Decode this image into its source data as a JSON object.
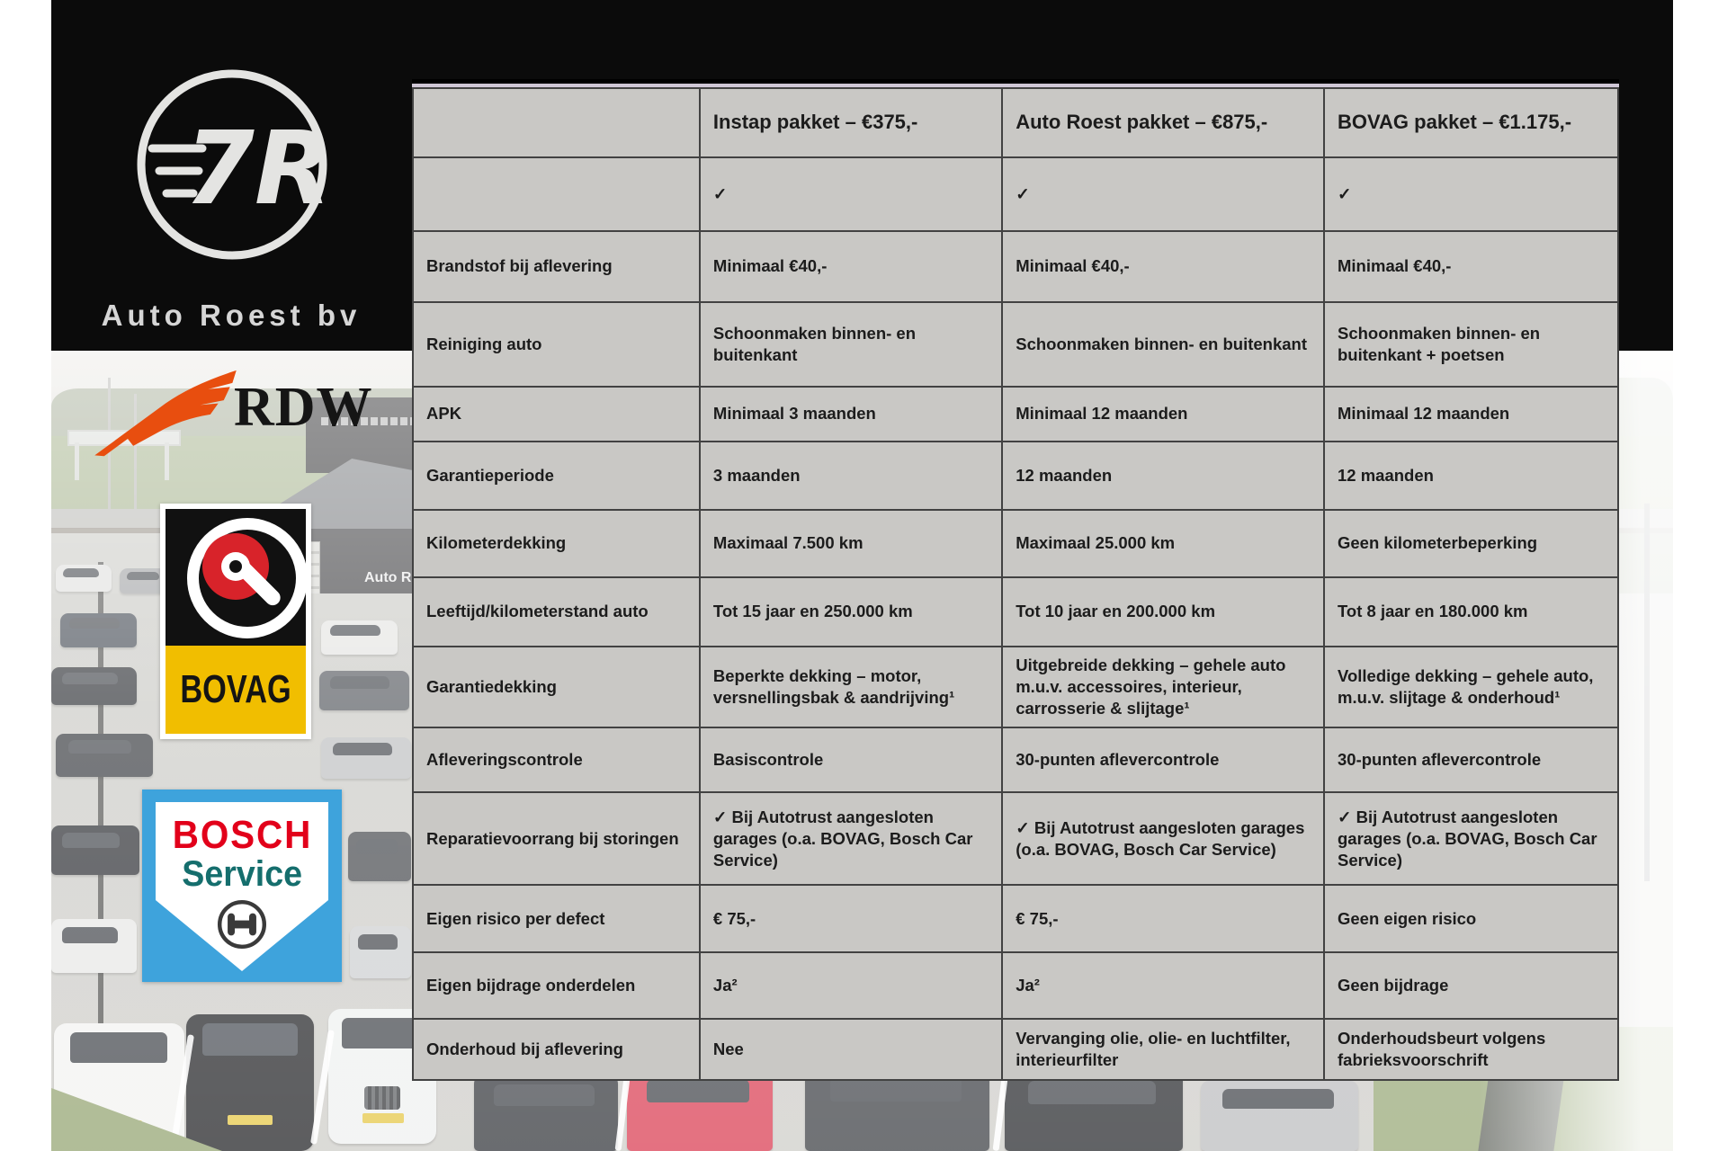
{
  "branding": {
    "company": "Auto Roest bv",
    "monogram": "7R",
    "building_sign": "Auto Ro",
    "rdw_label": "RDW",
    "bovag_label": "BOVAG",
    "bosch_line1": "BOSCH",
    "bosch_line2": "Service"
  },
  "colors": {
    "rdw-orange": "#E84E0F",
    "bovag-red": "#D8232A",
    "bovag-yellow": "#F1BE00",
    "bosch-blue": "#3EA3DC",
    "bosch-red": "#E2001A",
    "bosch-teal": "#156E6D",
    "table-bg": "#c9c8c5",
    "table-grid": "#424242"
  },
  "table": {
    "columns": [
      "",
      "Instap pakket – €375,-",
      "Auto Roest pakket – €875,-",
      "BOVAG pakket – €1.175,-"
    ],
    "rows": [
      {
        "label": "",
        "cells": [
          "✓",
          "✓",
          "✓"
        ]
      },
      {
        "label": "Brandstof bij aflevering",
        "cells": [
          "Minimaal €40,-",
          "Minimaal €40,-",
          "Minimaal €40,-"
        ]
      },
      {
        "label": "Reiniging auto",
        "cells": [
          "Schoonmaken binnen- en buitenkant",
          "Schoonmaken binnen- en buitenkant",
          "Schoonmaken binnen- en buitenkant + poetsen"
        ]
      },
      {
        "label": "APK",
        "cells": [
          "Minimaal 3 maanden",
          "Minimaal 12 maanden",
          "Minimaal 12 maanden"
        ]
      },
      {
        "label": "Garantieperiode",
        "cells": [
          "3 maanden",
          "12 maanden",
          "12 maanden"
        ]
      },
      {
        "label": "Kilometerdekking",
        "cells": [
          "Maximaal 7.500 km",
          "Maximaal 25.000 km",
          "Geen kilometerbeperking"
        ]
      },
      {
        "label": "Leeftijd/kilometerstand auto",
        "cells": [
          "Tot 15 jaar en 250.000 km",
          "Tot 10 jaar en 200.000 km",
          "Tot 8 jaar en 180.000 km"
        ]
      },
      {
        "label": "Garantiedekking",
        "cells": [
          "Beperkte dekking – motor, versnellingsbak & aandrijving¹",
          "Uitgebreide dekking – gehele auto m.u.v. accessoires, interieur, carrosserie & slijtage¹",
          "Volledige dekking – gehele auto, m.u.v. slijtage & onderhoud¹"
        ]
      },
      {
        "label": "Afleveringscontrole",
        "cells": [
          "Basiscontrole",
          "30-punten aflevercontrole",
          "30-punten aflevercontrole"
        ]
      },
      {
        "label": "Reparatievoorrang bij storingen",
        "cells": [
          "✓ Bij Autotrust aangesloten garages (o.a. BOVAG, Bosch Car Service)",
          "✓ Bij Autotrust aangesloten garages (o.a. BOVAG, Bosch Car Service)",
          "✓ Bij Autotrust aangesloten garages (o.a. BOVAG, Bosch Car Service)"
        ]
      },
      {
        "label": "Eigen risico per defect",
        "cells": [
          "€ 75,-",
          "€ 75,-",
          "Geen eigen risico"
        ]
      },
      {
        "label": "Eigen bijdrage onderdelen",
        "cells": [
          "Ja²",
          "Ja²",
          "Geen bijdrage"
        ]
      },
      {
        "label": "Onderhoud bij aflevering",
        "cells": [
          "Nee",
          "Vervanging olie, olie- en luchtfilter, interieurfilter",
          "Onderhoudsbeurt volgens fabrieksvoorschrift"
        ]
      }
    ]
  }
}
